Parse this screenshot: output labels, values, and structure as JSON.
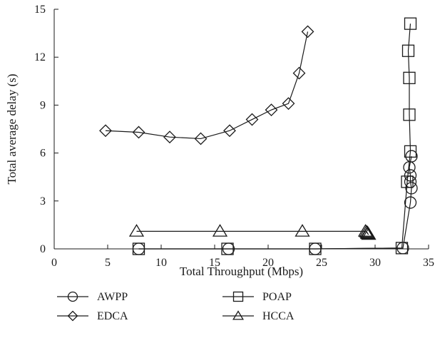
{
  "chart_data": {
    "type": "line",
    "xlabel": "Total Throughput (Mbps)",
    "ylabel": "Total average delay (s)",
    "xlim": [
      0,
      35
    ],
    "ylim": [
      0,
      15
    ],
    "xticks": [
      0,
      5,
      10,
      15,
      20,
      25,
      30,
      35
    ],
    "yticks": [
      0,
      3,
      6,
      9,
      12,
      15
    ],
    "grid": false,
    "legend_position": "bottom",
    "color": "#1a1a1a",
    "series": [
      {
        "name": "AWPP",
        "marker": "circle",
        "points": [
          [
            7.9,
            0.0
          ],
          [
            16.3,
            0.0
          ],
          [
            24.4,
            0.0
          ],
          [
            32.6,
            0.05
          ],
          [
            33.3,
            2.9
          ],
          [
            33.4,
            3.8
          ],
          [
            33.3,
            4.2
          ],
          [
            33.3,
            4.6
          ],
          [
            33.2,
            5.1
          ],
          [
            33.4,
            5.8
          ]
        ]
      },
      {
        "name": "POAP",
        "marker": "square",
        "points": [
          [
            7.9,
            0.0
          ],
          [
            16.2,
            0.0
          ],
          [
            24.4,
            0.0
          ],
          [
            32.5,
            0.05
          ],
          [
            33.0,
            4.2
          ],
          [
            33.3,
            6.1
          ],
          [
            33.2,
            8.4
          ],
          [
            33.2,
            10.7
          ],
          [
            33.1,
            12.4
          ],
          [
            33.3,
            14.1
          ]
        ]
      },
      {
        "name": "EDCA",
        "marker": "diamond",
        "points": [
          [
            4.8,
            7.4
          ],
          [
            7.9,
            7.3
          ],
          [
            10.8,
            7.0
          ],
          [
            13.7,
            6.9
          ],
          [
            16.4,
            7.4
          ],
          [
            18.5,
            8.1
          ],
          [
            20.3,
            8.7
          ],
          [
            21.9,
            9.1
          ],
          [
            22.9,
            11.0
          ],
          [
            23.7,
            13.6
          ]
        ]
      },
      {
        "name": "HCCA",
        "marker": "triangle",
        "points": [
          [
            7.7,
            1.1
          ],
          [
            15.5,
            1.1
          ],
          [
            23.2,
            1.1
          ],
          [
            29.1,
            1.1
          ],
          [
            29.2,
            1.05
          ],
          [
            29.3,
            1.0
          ],
          [
            29.3,
            0.95
          ],
          [
            29.4,
            0.9
          ]
        ]
      }
    ]
  }
}
